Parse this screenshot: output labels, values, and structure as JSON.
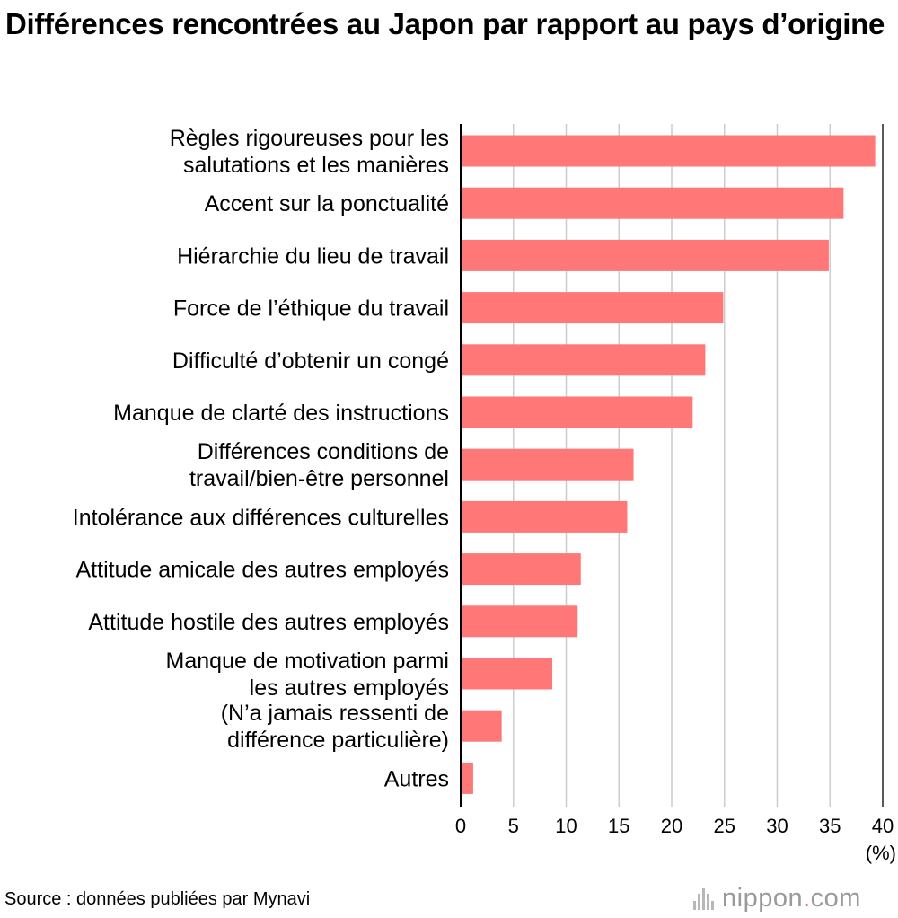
{
  "title": "Différences rencontrées au Japon par rapport au pays d’origine",
  "unit_label": "(%)",
  "source": "Source : données publiées par Mynavi",
  "logo": {
    "brand": "nippon",
    "dot": ".",
    "suffix": "com",
    "icon": "nippon-logo-icon"
  },
  "colors": {
    "bar": "#ff7777",
    "grid": "#cccccc",
    "axis": "#000000",
    "accent": "#f26a6a"
  },
  "chart_data": {
    "type": "bar",
    "orientation": "horizontal",
    "categories": [
      [
        "Règles rigoureuses pour les",
        "salutations et les manières"
      ],
      [
        "Accent sur la ponctualité"
      ],
      [
        "Hiérarchie du lieu de travail"
      ],
      [
        "Force de l’éthique du travail"
      ],
      [
        "Difficulté d’obtenir un congé"
      ],
      [
        "Manque de clarté des instructions"
      ],
      [
        "Différences conditions de",
        "travail/bien-être personnel"
      ],
      [
        "Intolérance aux différences culturelles"
      ],
      [
        "Attitude amicale des autres employés"
      ],
      [
        "Attitude hostile des autres employés"
      ],
      [
        "Manque de motivation parmi",
        "les autres employés"
      ],
      [
        "(N’a jamais ressenti de",
        "différence particulière)"
      ],
      [
        "Autres"
      ]
    ],
    "values": [
      39.2,
      36.2,
      34.8,
      24.8,
      23.1,
      21.9,
      16.3,
      15.7,
      11.3,
      11.0,
      8.6,
      3.8,
      1.1
    ],
    "xlim": [
      0,
      40
    ],
    "xticks": [
      "0",
      "5",
      "10",
      "15",
      "20",
      "25",
      "30",
      "35",
      "40"
    ],
    "grid": true
  }
}
